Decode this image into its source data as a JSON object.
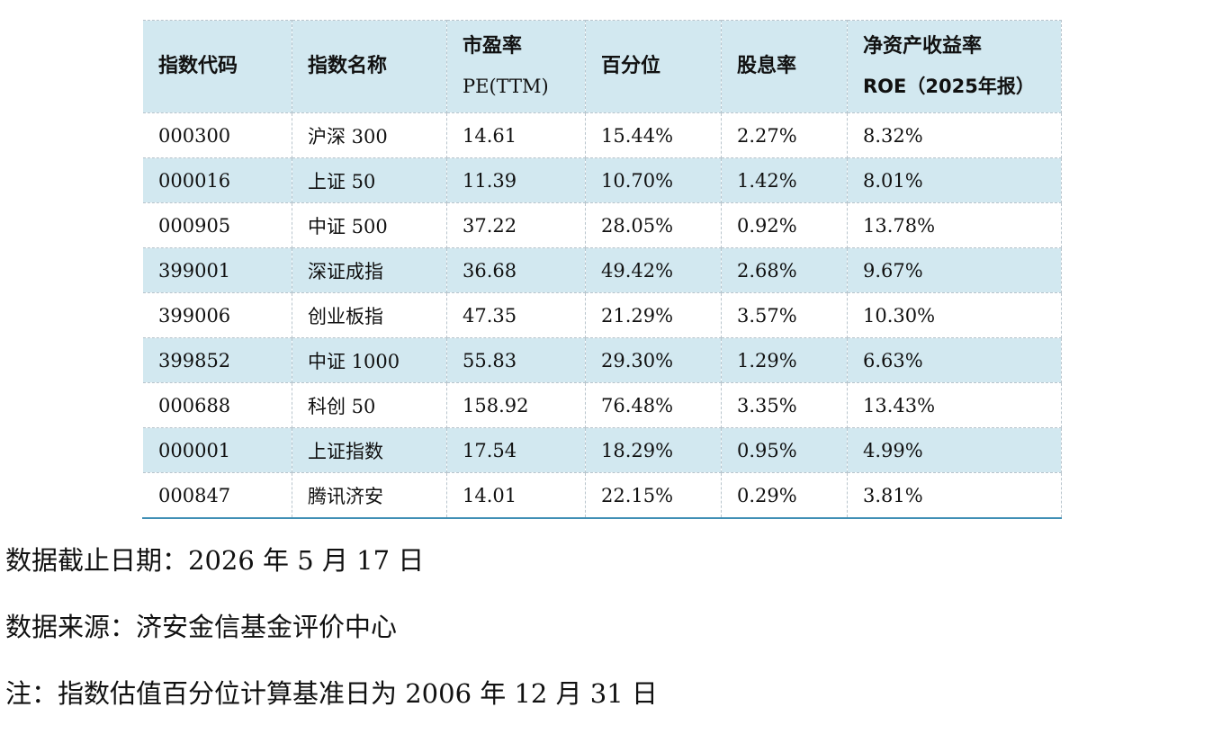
{
  "table": {
    "headers": [
      {
        "line1": "指数代码",
        "line2": ""
      },
      {
        "line1": "指数名称",
        "line2": ""
      },
      {
        "line1": "市盈率",
        "line2": "PE(TTM)"
      },
      {
        "line1": "百分位",
        "line2": ""
      },
      {
        "line1": "股息率",
        "line2": ""
      },
      {
        "line1": "净资产收益率",
        "line2": "ROE（2025年报）"
      }
    ],
    "rows": [
      [
        "000300",
        "沪深 300",
        "14.61",
        "15.44%",
        "2.27%",
        "8.32%"
      ],
      [
        "000016",
        "上证 50",
        "11.39",
        "10.70%",
        "1.42%",
        "8.01%"
      ],
      [
        "000905",
        "中证 500",
        "37.22",
        "28.05%",
        "0.92%",
        "13.78%"
      ],
      [
        "399001",
        "深证成指",
        "36.68",
        "49.42%",
        "2.68%",
        "9.67%"
      ],
      [
        "399006",
        "创业板指",
        "47.35",
        "21.29%",
        "3.57%",
        "10.30%"
      ],
      [
        "399852",
        "中证 1000",
        "55.83",
        "29.30%",
        "1.29%",
        "6.63%"
      ],
      [
        "000688",
        "科创 50",
        "158.92",
        "76.48%",
        "3.35%",
        "13.43%"
      ],
      [
        "000001",
        "上证指数",
        "17.54",
        "18.29%",
        "0.95%",
        "4.99%"
      ],
      [
        "000847",
        "腾讯济安",
        "14.01",
        "22.15%",
        "0.29%",
        "3.81%"
      ]
    ]
  },
  "notes": {
    "date": "数据截止日期：2026 年 5 月 17 日",
    "source": "数据来源：济安金信基金评价中心",
    "remark": "注：指数估值百分位计算基准日为 2006 年 12 月 31 日"
  },
  "colors": {
    "header_bg": "#d2e8f0",
    "stripe_bg": "#d2e8f0",
    "bottom_rule": "#3f8fb5"
  }
}
